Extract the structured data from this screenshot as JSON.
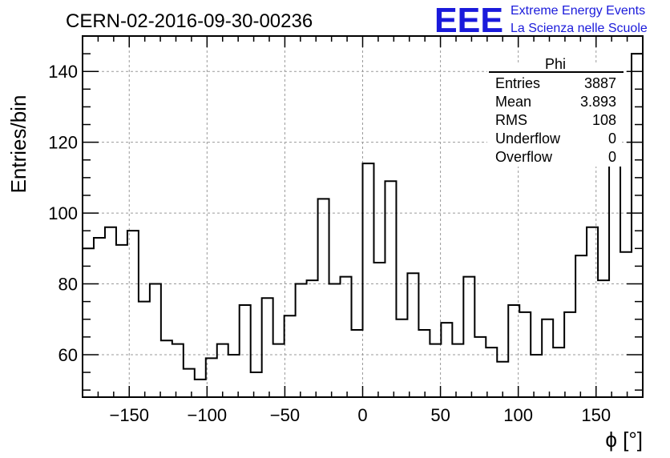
{
  "header": {
    "title": "CERN-02-2016-09-30-00236",
    "logo": "EEE",
    "brand_line1": "Extreme Energy Events",
    "brand_line2": "La Scienza nelle Scuole",
    "brand_color": "#1a1adb"
  },
  "stats_box": {
    "title": "Phi",
    "rows": [
      {
        "label": "Entries",
        "value": "3887"
      },
      {
        "label": "Mean",
        "value": "3.893"
      },
      {
        "label": "RMS",
        "value": "108"
      },
      {
        "label": "Underflow",
        "value": "0"
      },
      {
        "label": "Overflow",
        "value": "0"
      }
    ]
  },
  "chart_data": {
    "type": "histogram",
    "xlabel": "ϕ [°]",
    "ylabel": "Entries/bin",
    "xlim": [
      -180,
      180
    ],
    "ylim": [
      48,
      150
    ],
    "bin_width": 7.2,
    "grid": true,
    "x_ticks": [
      {
        "value": -150,
        "label": "−150"
      },
      {
        "value": -100,
        "label": "−100"
      },
      {
        "value": -50,
        "label": "−50"
      },
      {
        "value": 0,
        "label": "0"
      },
      {
        "value": 50,
        "label": "50"
      },
      {
        "value": 100,
        "label": "100"
      },
      {
        "value": 150,
        "label": "150"
      }
    ],
    "y_ticks": [
      {
        "value": 60,
        "label": "60"
      },
      {
        "value": 80,
        "label": "80"
      },
      {
        "value": 100,
        "label": "100"
      },
      {
        "value": 120,
        "label": "120"
      },
      {
        "value": 140,
        "label": "140"
      }
    ],
    "values": [
      90,
      93,
      96,
      91,
      95,
      75,
      80,
      64,
      63,
      56,
      53,
      59,
      63,
      60,
      74,
      55,
      76,
      63,
      71,
      80,
      81,
      104,
      80,
      82,
      67,
      114,
      86,
      109,
      70,
      83,
      67,
      63,
      69,
      63,
      82,
      65,
      62,
      58,
      74,
      72,
      60,
      70,
      62,
      72,
      88,
      96,
      81,
      115,
      89,
      145
    ]
  }
}
